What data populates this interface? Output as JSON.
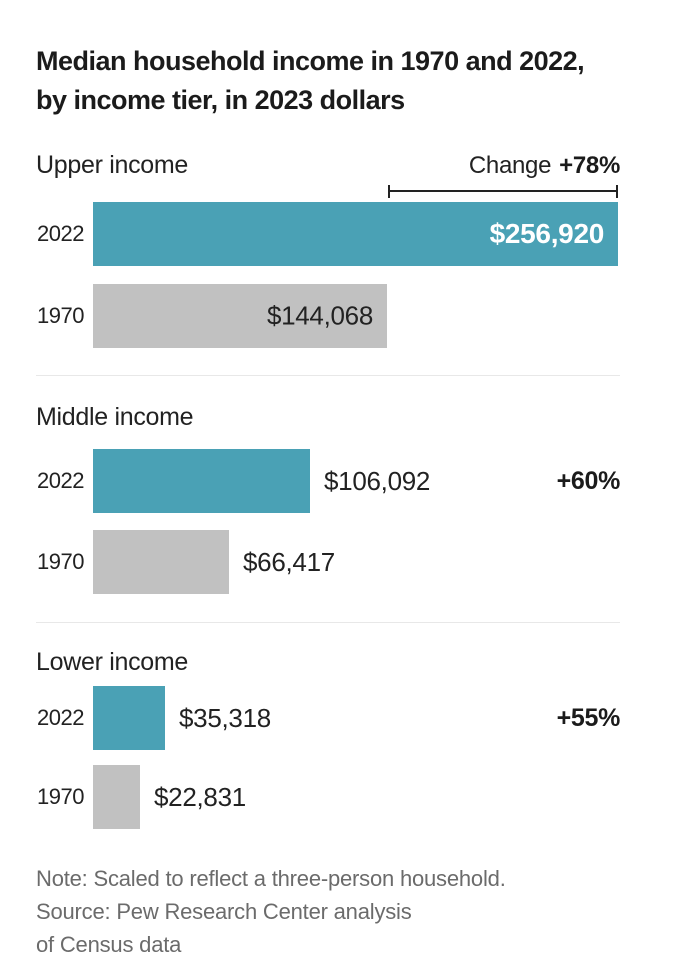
{
  "title": {
    "line1": "Median household income in 1970 and 2022,",
    "line2": "by income tier, in 2023 dollars"
  },
  "chart_data": {
    "type": "bar",
    "orientation": "horizontal",
    "title": "Median household income in 1970 and 2022, by income tier, in 2023 dollars",
    "unit": "2023 dollars",
    "categories": [
      "2022",
      "1970"
    ],
    "change_prefix": "Change",
    "colors": {
      "bar_2022": "#4aa1b5",
      "bar_1970": "#c1c1c1",
      "text_dark": "#222222",
      "text_note": "#6b6b6b"
    },
    "sections": [
      {
        "tier": "Upper income",
        "change": "+78%",
        "bars": [
          {
            "year": "2022",
            "value": 256920,
            "label": "$256,920",
            "color": "#4aa1b5"
          },
          {
            "year": "1970",
            "value": 144068,
            "label": "$144,068",
            "color": "#c1c1c1"
          }
        ]
      },
      {
        "tier": "Middle income",
        "change": "+60%",
        "bars": [
          {
            "year": "2022",
            "value": 106092,
            "label": "$106,092",
            "color": "#4aa1b5"
          },
          {
            "year": "1970",
            "value": 66417,
            "label": "$66,417",
            "color": "#c1c1c1"
          }
        ]
      },
      {
        "tier": "Lower income",
        "change": "+55%",
        "bars": [
          {
            "year": "2022",
            "value": 35318,
            "label": "$35,318",
            "color": "#4aa1b5"
          },
          {
            "year": "1970",
            "value": 22831,
            "label": "$22,831",
            "color": "#c1c1c1"
          }
        ]
      }
    ]
  },
  "footer": {
    "note": "Note: Scaled to reflect a three-person household.",
    "source_line1": "Source: Pew Research Center analysis",
    "source_line2": "of Census data"
  }
}
